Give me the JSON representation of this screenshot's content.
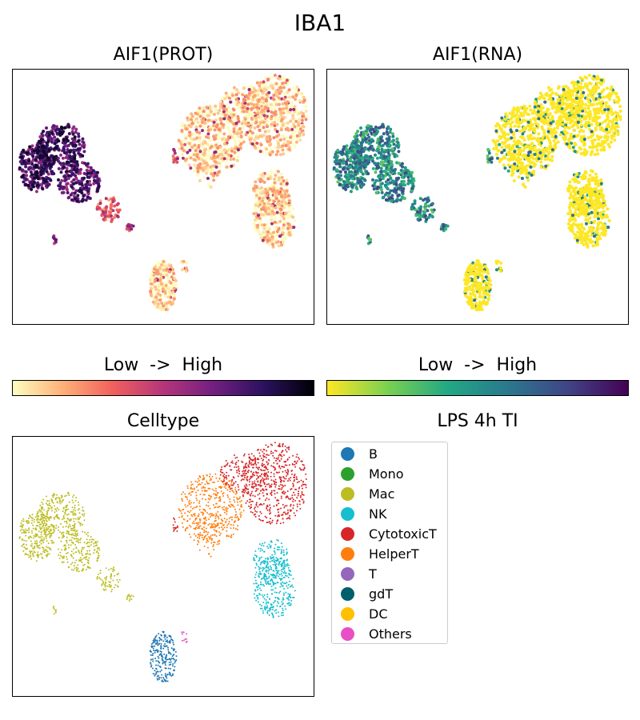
{
  "chart_data": {
    "type": "scatter",
    "title": "IBA1",
    "panels": [
      {
        "title": "AIF1(PROT)",
        "colormap": "magma_r",
        "colorbar_label": "Low  ->  High"
      },
      {
        "title": "AIF1(RNA)",
        "colormap": "viridis_r",
        "colorbar_label": "Low  ->  High"
      },
      {
        "title": "Celltype",
        "legend_title": "LPS 4h TI"
      }
    ],
    "legend": [
      {
        "label": "B",
        "color": "#1f77b4"
      },
      {
        "label": "Mono",
        "color": "#2ca02c"
      },
      {
        "label": "Mac",
        "color": "#bcbd22"
      },
      {
        "label": "NK",
        "color": "#17becf"
      },
      {
        "label": "CytotoxicT",
        "color": "#d62728"
      },
      {
        "label": "HelperT",
        "color": "#ff7f0e"
      },
      {
        "label": "T",
        "color": "#9467bd"
      },
      {
        "label": "gdT",
        "color": "#005f6a"
      },
      {
        "label": "DC",
        "color": "#ffc000"
      },
      {
        "label": "Others",
        "color": "#e84fc4"
      }
    ],
    "legend_placement": "right",
    "grid": false
  }
}
